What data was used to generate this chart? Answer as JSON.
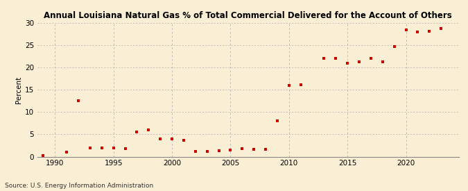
{
  "title": "Annual Louisiana Natural Gas % of Total Commercial Delivered for the Account of Others",
  "ylabel": "Percent",
  "source": "Source: U.S. Energy Information Administration",
  "background_color": "#faefd4",
  "years": [
    1989,
    1991,
    1992,
    1993,
    1994,
    1995,
    1996,
    1997,
    1998,
    1999,
    2000,
    2001,
    2002,
    2003,
    2004,
    2005,
    2006,
    2007,
    2008,
    2009,
    2010,
    2011,
    2013,
    2014,
    2015,
    2016,
    2017,
    2018,
    2019,
    2020,
    2021,
    2022,
    2023
  ],
  "values": [
    0.2,
    1.0,
    12.5,
    2.0,
    2.0,
    2.0,
    1.8,
    5.5,
    6.0,
    3.9,
    4.0,
    3.7,
    1.1,
    1.2,
    1.3,
    1.5,
    1.8,
    1.7,
    1.6,
    8.0,
    16.0,
    16.1,
    22.0,
    22.1,
    21.0,
    21.3,
    22.0,
    21.2,
    24.7,
    28.5,
    28.0,
    28.2,
    28.8
  ],
  "marker_color": "#cc0000",
  "xlim": [
    1988.5,
    2024.5
  ],
  "ylim": [
    0,
    30
  ],
  "xticks": [
    1990,
    1995,
    2000,
    2005,
    2010,
    2015,
    2020
  ],
  "yticks": [
    0,
    5,
    10,
    15,
    20,
    25,
    30
  ],
  "title_fontsize": 8.5,
  "tick_fontsize": 7.5,
  "ylabel_fontsize": 7.5,
  "source_fontsize": 6.5
}
